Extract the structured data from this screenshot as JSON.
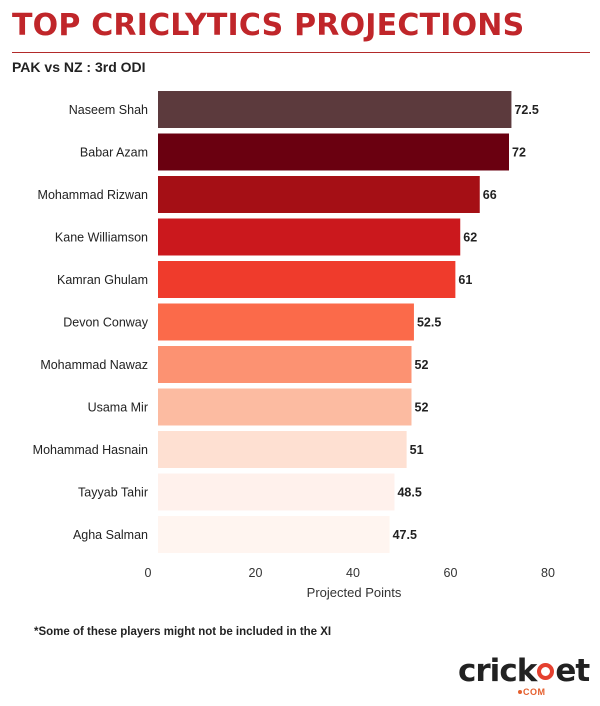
{
  "header": {
    "title": "TOP CRICLYTICS PROJECTIONS",
    "subtitle": "PAK vs NZ : 3rd ODI"
  },
  "chart_data": {
    "type": "bar",
    "orientation": "horizontal",
    "categories": [
      "Naseem Shah",
      "Babar Azam",
      "Mohammad Rizwan",
      "Kane Williamson",
      "Kamran Ghulam",
      "Devon Conway",
      "Mohammad Nawaz",
      "Usama Mir",
      "Mohammad Hasnain",
      "Tayyab Tahir",
      "Agha Salman"
    ],
    "values": [
      72.5,
      72,
      66,
      62,
      61,
      52.5,
      52,
      52,
      51,
      48.5,
      47.5
    ],
    "value_labels": [
      "72.5",
      "72",
      "66",
      "62",
      "61",
      "52.5",
      "52",
      "52",
      "51",
      "48.5",
      "47.5"
    ],
    "bar_colors": [
      "#5c3a3d",
      "#6a0010",
      "#a50f15",
      "#cb181d",
      "#ef3b2c",
      "#fb6a4a",
      "#fc9272",
      "#fcbba1",
      "#fee0d2",
      "#fff1ec",
      "#fff5f0"
    ],
    "xlabel": "Projected Points",
    "xlim": [
      0,
      80
    ],
    "xticks": [
      0,
      20,
      40,
      60,
      80
    ],
    "xtick_labels": [
      "0",
      "20",
      "40",
      "60",
      "80"
    ],
    "grid": false
  },
  "footnote": "*Some of these players might not be included in the XI",
  "logo": {
    "word_part1": "cr",
    "word_part2": "ck",
    "word_part3": "et",
    "dotcom": "COM"
  }
}
